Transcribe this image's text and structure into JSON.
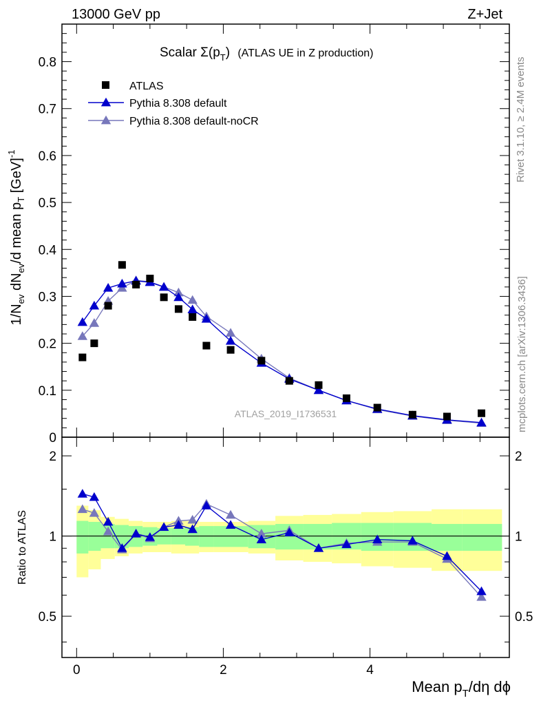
{
  "header": {
    "energy_label": "13000 GeV pp",
    "process_label": "Z+Jet"
  },
  "side_text": {
    "rivet": "Rivet 3.1.10, ≥ 2.4M events",
    "mcplots": "mcplots.cern.ch [arXiv:1306.3436]"
  },
  "analysis_id": "ATLAS_2019_I1736531",
  "colors": {
    "data": "#000000",
    "pythia_default": "#0000cc",
    "pythia_nocr": "#7777bb",
    "band_inner": "#99ff99",
    "band_outer": "#ffff99"
  },
  "chart_data": [
    {
      "type": "scatter",
      "title_main": "Scalar Σ(p",
      "title_sub": "T",
      "title_close": ")",
      "title_rest": "(ATLAS UE in Z production)",
      "ylabel": "1/N_ev dN_ev/d mean p_T [GeV]^-1",
      "xlim": [
        -0.2,
        5.9
      ],
      "ylim": [
        0,
        0.88
      ],
      "yticks": [
        "0",
        "0.1",
        "0.2",
        "0.3",
        "0.4",
        "0.5",
        "0.6",
        "0.7",
        "0.8"
      ],
      "legend_position": "top-left",
      "series": [
        {
          "name": "ATLAS",
          "marker": "square",
          "x": [
            0.08,
            0.24,
            0.43,
            0.62,
            0.81,
            1.0,
            1.19,
            1.39,
            1.58,
            1.77,
            2.1,
            2.52,
            2.9,
            3.3,
            3.68,
            4.1,
            4.58,
            5.05,
            5.52
          ],
          "y": [
            0.17,
            0.2,
            0.28,
            0.367,
            0.325,
            0.338,
            0.298,
            0.273,
            0.256,
            0.195,
            0.186,
            0.163,
            0.12,
            0.111,
            0.083,
            0.063,
            0.048,
            0.044,
            0.051
          ]
        },
        {
          "name": "Pythia 8.308 default",
          "marker": "triangle",
          "x": [
            0.08,
            0.24,
            0.43,
            0.62,
            0.81,
            1.0,
            1.19,
            1.39,
            1.58,
            1.77,
            2.1,
            2.52,
            2.9,
            3.3,
            3.68,
            4.1,
            4.58,
            5.05,
            5.52
          ],
          "y": [
            0.245,
            0.28,
            0.318,
            0.327,
            0.333,
            0.33,
            0.32,
            0.298,
            0.272,
            0.252,
            0.205,
            0.158,
            0.124,
            0.1,
            0.078,
            0.06,
            0.046,
            0.037,
            0.031
          ]
        },
        {
          "name": "Pythia 8.308 default-noCR",
          "marker": "triangle",
          "x": [
            0.08,
            0.24,
            0.43,
            0.62,
            0.81,
            1.0,
            1.19,
            1.39,
            1.58,
            1.77,
            2.1,
            2.52,
            2.9,
            3.3,
            3.68,
            4.1,
            4.58,
            5.05,
            5.52
          ],
          "y": [
            0.215,
            0.243,
            0.29,
            0.318,
            0.334,
            0.331,
            0.32,
            0.308,
            0.292,
            0.257,
            0.222,
            0.167,
            0.126,
            0.1,
            0.078,
            0.059,
            0.045,
            0.036,
            0.03
          ]
        }
      ]
    },
    {
      "type": "line",
      "ylabel": "Ratio to ATLAS",
      "xlabel_main": "Mean p",
      "xlabel_sub": "T",
      "xlabel_rest": "/dη dϕ",
      "xlim": [
        -0.2,
        5.9
      ],
      "ylim": [
        0.35,
        2.35
      ],
      "xticks": [
        "0",
        "2",
        "4"
      ],
      "xtick_values": [
        0,
        2,
        4
      ],
      "yticks": [
        "0.5",
        "1",
        "2"
      ],
      "ytick_values": [
        0.5,
        1,
        2
      ],
      "bands": {
        "bins": [
          [
            0,
            0.16
          ],
          [
            0.16,
            0.33
          ],
          [
            0.33,
            0.52
          ],
          [
            0.52,
            0.71
          ],
          [
            0.71,
            0.9
          ],
          [
            0.9,
            1.1
          ],
          [
            1.1,
            1.29
          ],
          [
            1.29,
            1.48
          ],
          [
            1.48,
            1.67
          ],
          [
            1.67,
            1.87
          ],
          [
            1.87,
            2.34
          ],
          [
            2.34,
            2.71
          ],
          [
            2.71,
            3.09
          ],
          [
            3.09,
            3.48
          ],
          [
            3.48,
            3.88
          ],
          [
            3.88,
            4.32
          ],
          [
            4.32,
            4.84
          ],
          [
            4.84,
            5.26
          ],
          [
            5.26,
            5.8
          ]
        ],
        "inner_lo": [
          0.86,
          0.88,
          0.9,
          0.9,
          0.91,
          0.92,
          0.93,
          0.93,
          0.92,
          0.91,
          0.91,
          0.9,
          0.89,
          0.89,
          0.89,
          0.88,
          0.88,
          0.88,
          0.88
        ],
        "inner_hi": [
          1.14,
          1.13,
          1.11,
          1.1,
          1.09,
          1.08,
          1.07,
          1.07,
          1.08,
          1.09,
          1.09,
          1.1,
          1.11,
          1.11,
          1.12,
          1.12,
          1.12,
          1.11,
          1.11
        ],
        "outer_lo": [
          0.7,
          0.75,
          0.82,
          0.84,
          0.86,
          0.87,
          0.87,
          0.86,
          0.86,
          0.87,
          0.87,
          0.86,
          0.81,
          0.8,
          0.79,
          0.77,
          0.76,
          0.74,
          0.74
        ],
        "outer_hi": [
          1.3,
          1.25,
          1.18,
          1.16,
          1.14,
          1.13,
          1.13,
          1.14,
          1.14,
          1.13,
          1.13,
          1.14,
          1.19,
          1.2,
          1.21,
          1.23,
          1.24,
          1.26,
          1.26
        ]
      },
      "series": [
        {
          "name": "Pythia 8.308 default",
          "x": [
            0.08,
            0.24,
            0.43,
            0.62,
            0.81,
            1.0,
            1.19,
            1.39,
            1.58,
            1.77,
            2.1,
            2.52,
            2.9,
            3.3,
            3.68,
            4.1,
            4.58,
            5.05,
            5.52
          ],
          "y": [
            1.44,
            1.4,
            1.13,
            0.9,
            1.02,
            0.99,
            1.08,
            1.1,
            1.06,
            1.3,
            1.1,
            0.97,
            1.03,
            0.9,
            0.93,
            0.97,
            0.96,
            0.84,
            0.62
          ]
        },
        {
          "name": "Pythia 8.308 default-noCR",
          "x": [
            0.08,
            0.24,
            0.43,
            0.62,
            0.81,
            1.0,
            1.19,
            1.39,
            1.58,
            1.77,
            2.1,
            2.52,
            2.9,
            3.3,
            3.68,
            4.1,
            4.58,
            5.05,
            5.52
          ],
          "y": [
            1.26,
            1.22,
            1.04,
            0.89,
            1.02,
            0.98,
            1.08,
            1.14,
            1.15,
            1.32,
            1.2,
            1.02,
            1.05,
            0.9,
            0.94,
            0.95,
            0.95,
            0.82,
            0.59
          ]
        }
      ]
    }
  ]
}
